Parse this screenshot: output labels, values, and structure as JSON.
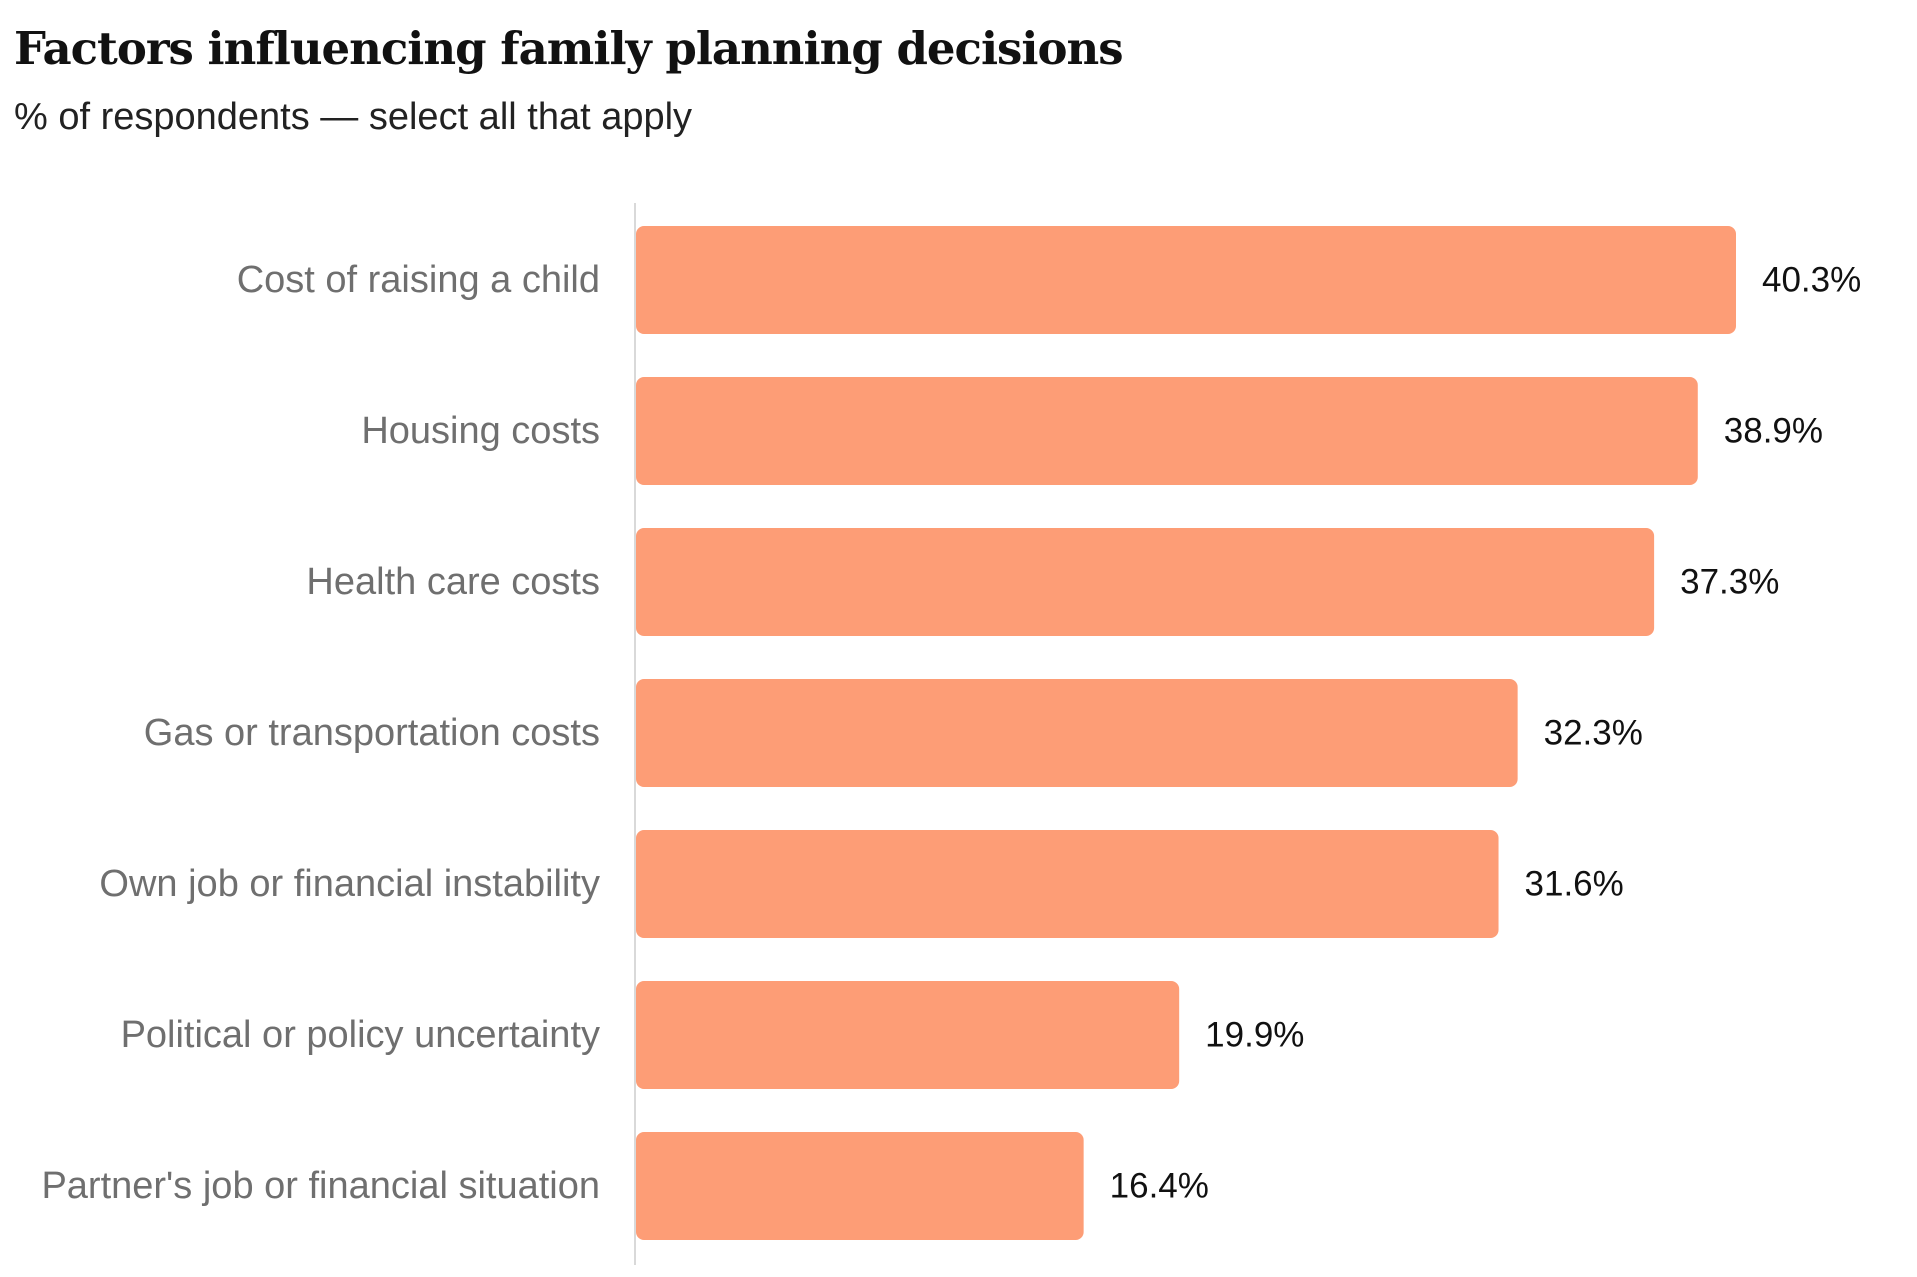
{
  "chart_data": {
    "type": "bar",
    "orientation": "horizontal",
    "title": "Factors influencing family planning decisions",
    "subtitle": "% of respondents — select all that apply",
    "categories": [
      "Cost of raising a child",
      "Housing costs",
      "Health care costs",
      "Gas or transportation costs",
      "Own job or financial instability",
      "Political or policy uncertainty",
      "Partner's job or financial situation"
    ],
    "values": [
      40.3,
      38.9,
      37.3,
      32.3,
      31.6,
      19.9,
      16.4
    ],
    "value_labels": [
      "40.3%",
      "38.9%",
      "37.3%",
      "32.3%",
      "31.6%",
      "19.9%",
      "16.4%"
    ],
    "unit": "%",
    "xlim": [
      0,
      40.3
    ],
    "grid": false,
    "legend": "none",
    "colors": {
      "bar": "#FD9D76",
      "axis": "#d9d9d9",
      "category_text": "#6f6f6f",
      "value_text": "#111111"
    }
  }
}
